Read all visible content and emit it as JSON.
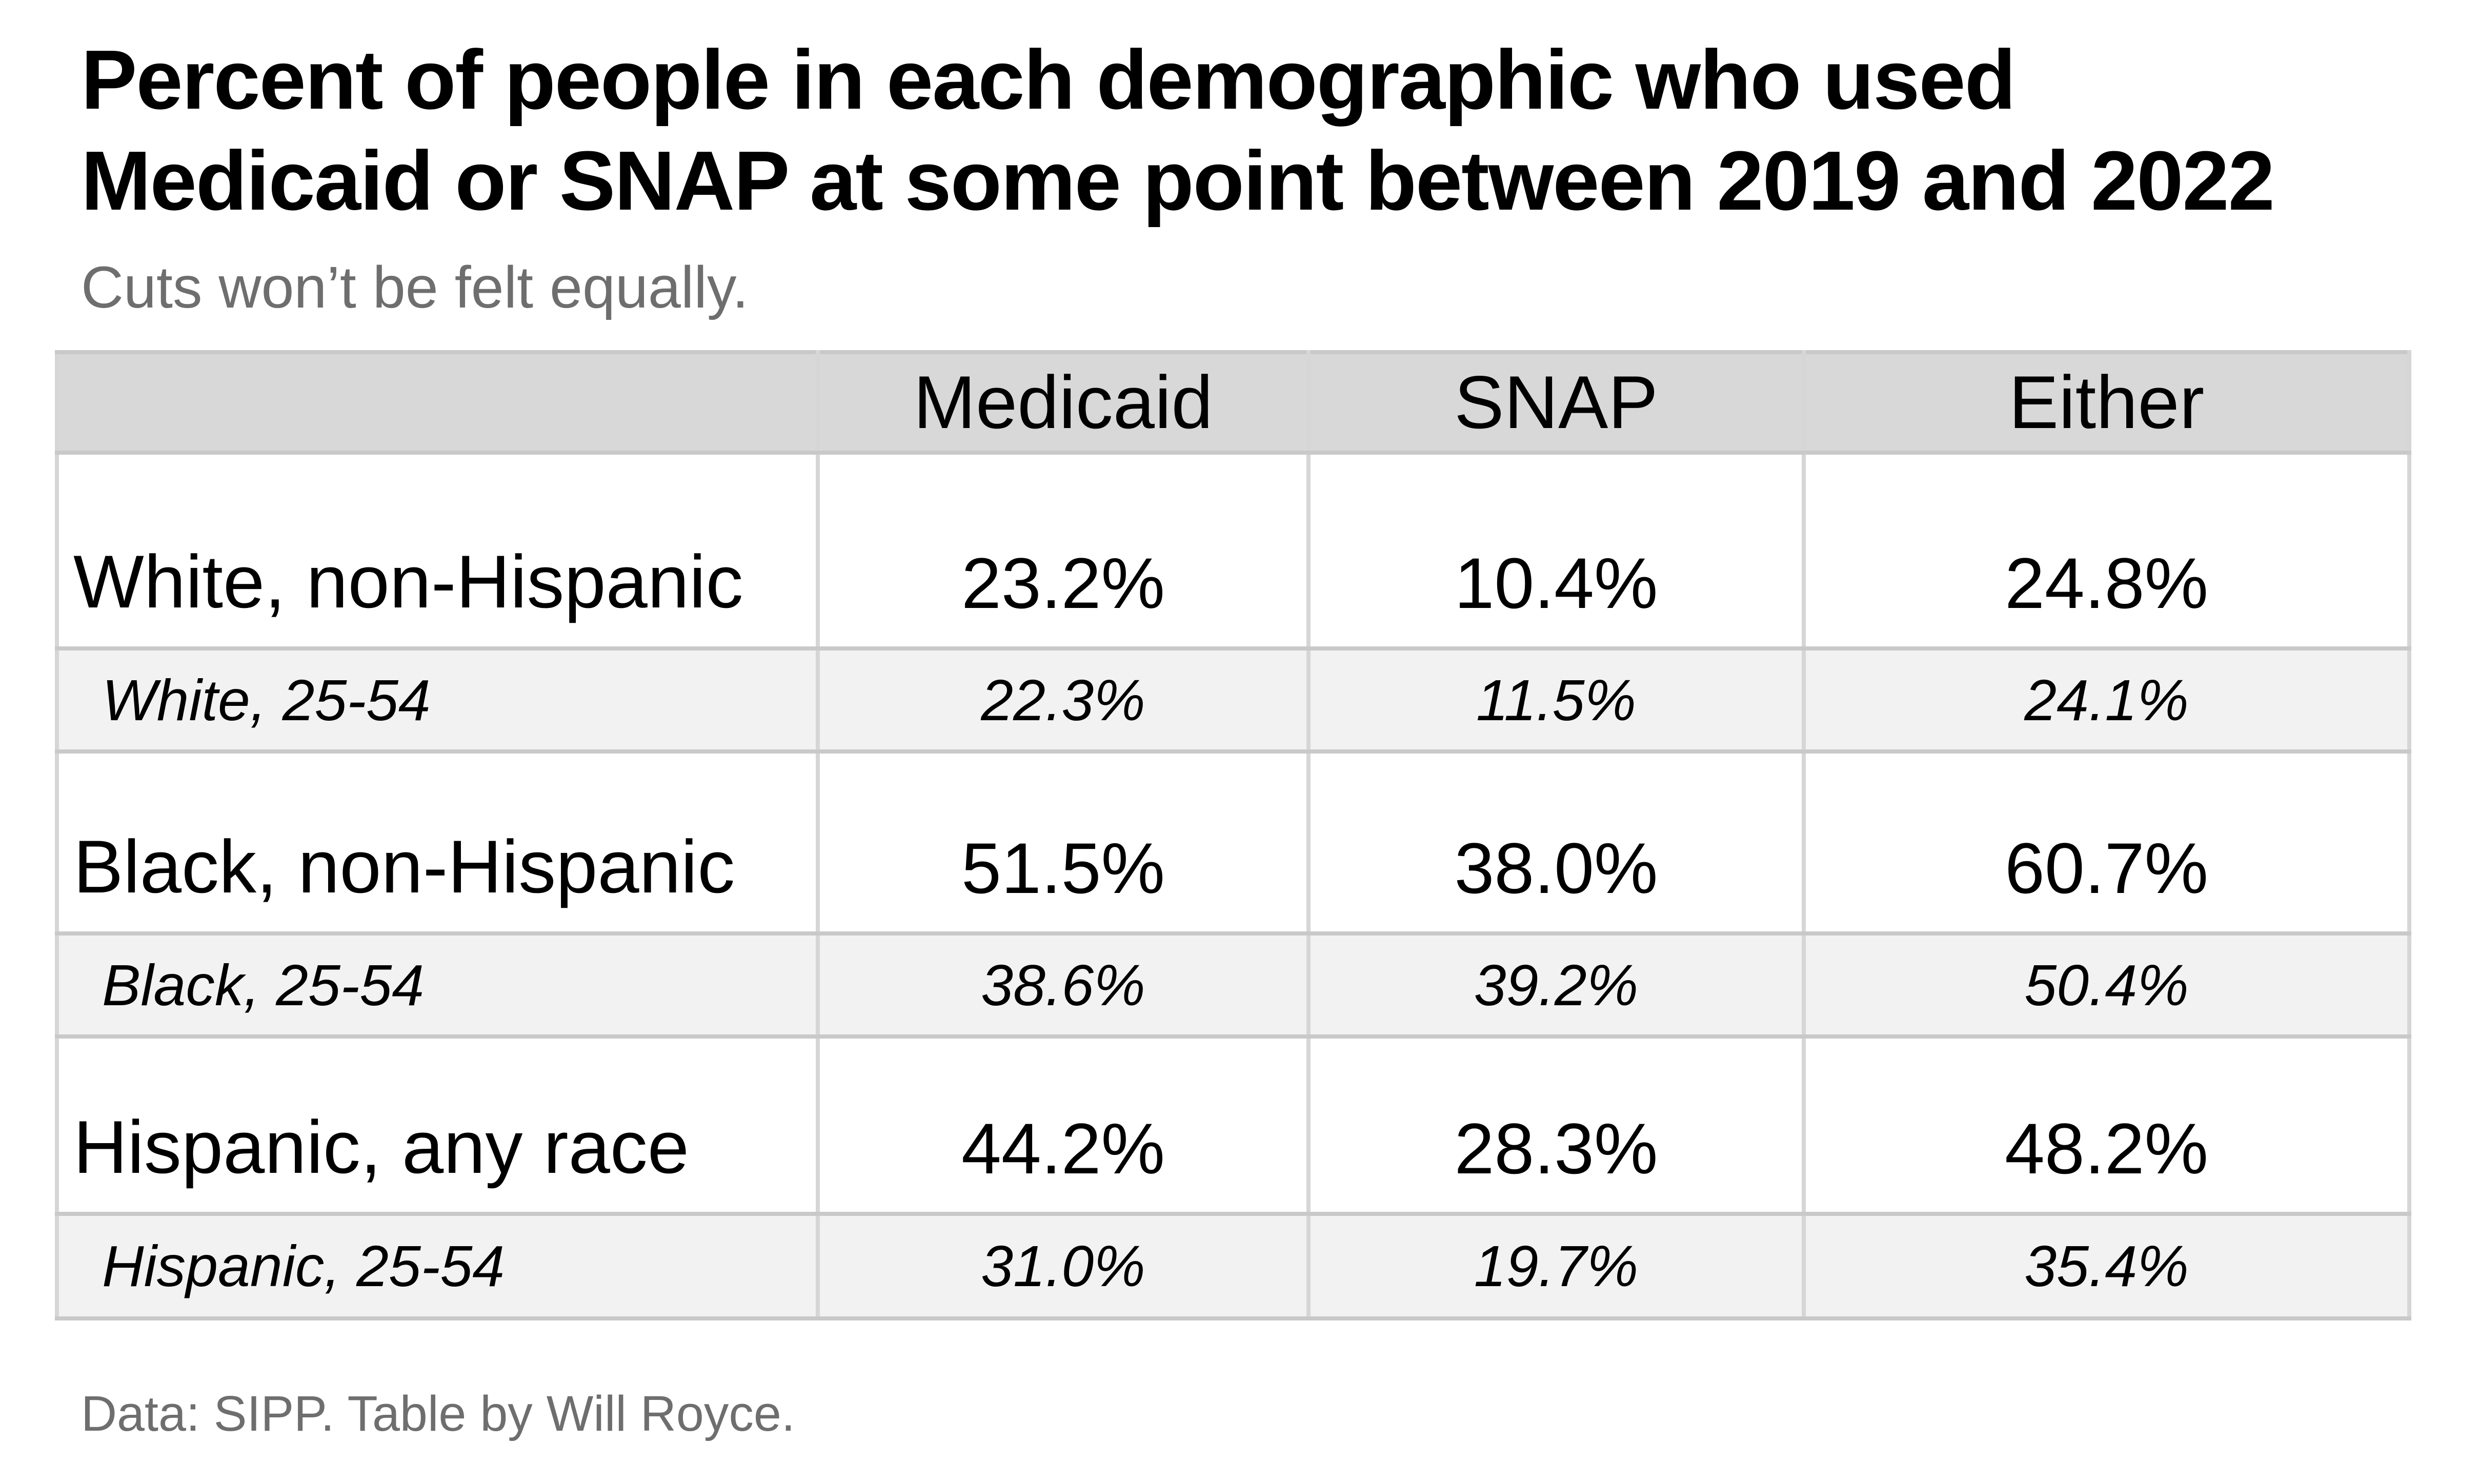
{
  "page": {
    "title_line1": "Percent of people in each demographic who used",
    "title_line2": "Medicaid or SNAP at some point between 2019 and 2022",
    "subtitle": "Cuts won’t be felt equally.",
    "footer": "Data: SIPP. Table by Will Royce."
  },
  "colors": {
    "page-bg": "#ffffff",
    "header-bg": "#d8d8d8",
    "subrow-bg": "#f2f2f2",
    "row-bg": "#ffffff",
    "border-h": "#c9c9c9",
    "border-v": "#d6d6d6",
    "text-main": "#000000",
    "text-muted": "#6e6e6e"
  },
  "chart_data": {
    "type": "table",
    "title": "Percent of people in each demographic who used Medicaid or SNAP at some point between 2019 and 2022",
    "subtitle": "Cuts won’t be felt equally.",
    "source_note": "Data: SIPP. Table by Will Royce.",
    "columns": [
      "",
      "Medicaid",
      "SNAP",
      "Either"
    ],
    "rows": [
      {
        "label": "White, non-Hispanic",
        "variant": "primary",
        "values": [
          "23.2%",
          "10.4%",
          "24.8%"
        ]
      },
      {
        "label": "White, 25-54",
        "variant": "secondary",
        "values": [
          "22.3%",
          "11.5%",
          "24.1%"
        ]
      },
      {
        "label": "Black, non-Hispanic",
        "variant": "primary",
        "values": [
          "51.5%",
          "38.0%",
          "60.7%"
        ]
      },
      {
        "label": "Black, 25-54",
        "variant": "secondary",
        "values": [
          "38.6%",
          "39.2%",
          "50.4%"
        ]
      },
      {
        "label": "Hispanic, any race",
        "variant": "primary",
        "values": [
          "44.2%",
          "28.3%",
          "48.2%"
        ]
      },
      {
        "label": "Hispanic, 25-54",
        "variant": "secondary",
        "values": [
          "31.0%",
          "19.7%",
          "35.4%"
        ]
      }
    ]
  }
}
